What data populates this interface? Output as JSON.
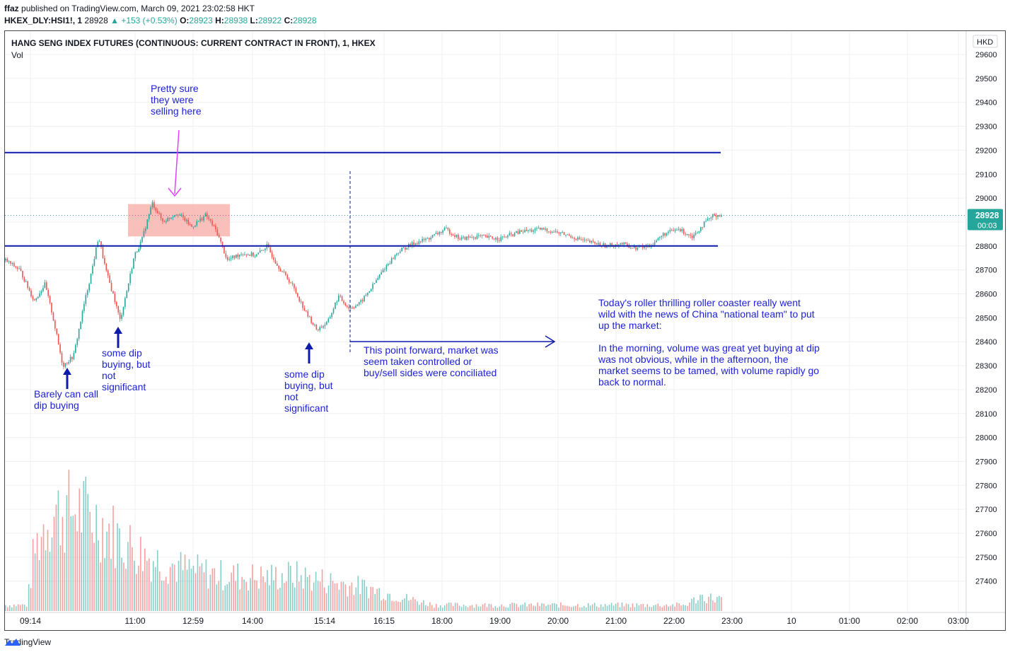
{
  "header": {
    "author": "ffaz",
    "published_text": "published on TradingView.com, March 09, 2021 23:02:58 HKT"
  },
  "quote": {
    "symbol": "HKEX_DLY:HSI1!, 1",
    "last": "28928",
    "change": "▲ +153 (+0.53%)",
    "o_label": "O:",
    "o": "28923",
    "h_label": "H:",
    "h": "28938",
    "l_label": "L:",
    "l": "28922",
    "c_label": "C:",
    "c": "28928"
  },
  "chart_data": {
    "type": "line",
    "title": "HANG SENG INDEX FUTURES (CONTINUOUS: CURRENT CONTRACT IN FRONT), 1, HKEX",
    "volume_label": "Vol",
    "currency": "HKD",
    "last_price_label": "28928",
    "countdown_label": "00:03",
    "ylim": [
      27300,
      29650
    ],
    "y_ticks": [
      29600,
      29500,
      29400,
      29300,
      29200,
      29100,
      29000,
      28900,
      28800,
      28700,
      28600,
      28500,
      28400,
      28300,
      28200,
      28100,
      28000,
      27900,
      27800,
      27700,
      27600,
      27500,
      27400
    ],
    "x_ticks": [
      "09:14",
      "11:00",
      "12:59",
      "14:00",
      "15:14",
      "16:15",
      "18:00",
      "19:00",
      "20:00",
      "21:00",
      "22:00",
      "23:00",
      "10",
      "01:00",
      "02:00",
      "03:00"
    ],
    "horizontal_levels": [
      29190,
      28800
    ],
    "price_series": [
      {
        "t": 0,
        "v": 28740
      },
      {
        "t": 0.02,
        "v": 28700
      },
      {
        "t": 0.04,
        "v": 28570
      },
      {
        "t": 0.055,
        "v": 28640
      },
      {
        "t": 0.065,
        "v": 28520
      },
      {
        "t": 0.08,
        "v": 28300
      },
      {
        "t": 0.095,
        "v": 28340
      },
      {
        "t": 0.11,
        "v": 28560
      },
      {
        "t": 0.12,
        "v": 28690
      },
      {
        "t": 0.13,
        "v": 28840
      },
      {
        "t": 0.14,
        "v": 28700
      },
      {
        "t": 0.152,
        "v": 28580
      },
      {
        "t": 0.16,
        "v": 28490
      },
      {
        "t": 0.17,
        "v": 28620
      },
      {
        "t": 0.18,
        "v": 28760
      },
      {
        "t": 0.19,
        "v": 28820
      },
      {
        "t": 0.205,
        "v": 28980
      },
      {
        "t": 0.22,
        "v": 28900
      },
      {
        "t": 0.24,
        "v": 28940
      },
      {
        "t": 0.26,
        "v": 28880
      },
      {
        "t": 0.28,
        "v": 28930
      },
      {
        "t": 0.295,
        "v": 28860
      },
      {
        "t": 0.31,
        "v": 28740
      },
      {
        "t": 0.33,
        "v": 28770
      },
      {
        "t": 0.35,
        "v": 28760
      },
      {
        "t": 0.365,
        "v": 28800
      },
      {
        "t": 0.38,
        "v": 28720
      },
      {
        "t": 0.4,
        "v": 28640
      },
      {
        "t": 0.42,
        "v": 28520
      },
      {
        "t": 0.435,
        "v": 28450
      },
      {
        "t": 0.45,
        "v": 28480
      },
      {
        "t": 0.465,
        "v": 28590
      },
      {
        "t": 0.48,
        "v": 28540
      },
      {
        "t": 0.495,
        "v": 28560
      },
      {
        "t": 0.51,
        "v": 28620
      },
      {
        "t": 0.53,
        "v": 28710
      },
      {
        "t": 0.55,
        "v": 28780
      },
      {
        "t": 0.57,
        "v": 28810
      },
      {
        "t": 0.59,
        "v": 28830
      },
      {
        "t": 0.615,
        "v": 28870
      },
      {
        "t": 0.635,
        "v": 28830
      },
      {
        "t": 0.66,
        "v": 28840
      },
      {
        "t": 0.69,
        "v": 28830
      },
      {
        "t": 0.72,
        "v": 28860
      },
      {
        "t": 0.75,
        "v": 28870
      },
      {
        "t": 0.78,
        "v": 28850
      },
      {
        "t": 0.81,
        "v": 28820
      },
      {
        "t": 0.84,
        "v": 28800
      },
      {
        "t": 0.86,
        "v": 28810
      },
      {
        "t": 0.88,
        "v": 28790
      },
      {
        "t": 0.9,
        "v": 28800
      },
      {
        "t": 0.92,
        "v": 28850
      },
      {
        "t": 0.94,
        "v": 28870
      },
      {
        "t": 0.96,
        "v": 28840
      },
      {
        "t": 0.975,
        "v": 28890
      },
      {
        "t": 0.99,
        "v": 28930
      },
      {
        "t": 1,
        "v": 28928
      }
    ],
    "volume_profile": [
      {
        "t": 0,
        "v": 0.05
      },
      {
        "t": 0.03,
        "v": 0.05
      },
      {
        "t": 0.04,
        "v": 0.5
      },
      {
        "t": 0.06,
        "v": 0.8
      },
      {
        "t": 0.1,
        "v": 0.85
      },
      {
        "t": 0.13,
        "v": 0.75
      },
      {
        "t": 0.16,
        "v": 0.6
      },
      {
        "t": 0.2,
        "v": 0.45
      },
      {
        "t": 0.25,
        "v": 0.35
      },
      {
        "t": 0.3,
        "v": 0.3
      },
      {
        "t": 0.36,
        "v": 0.28
      },
      {
        "t": 0.4,
        "v": 0.3
      },
      {
        "t": 0.45,
        "v": 0.25
      },
      {
        "t": 0.5,
        "v": 0.2
      },
      {
        "t": 0.55,
        "v": 0.12
      },
      {
        "t": 0.6,
        "v": 0.05
      },
      {
        "t": 0.95,
        "v": 0.05
      },
      {
        "t": 0.97,
        "v": 0.12
      },
      {
        "t": 1,
        "v": 0.1
      }
    ]
  },
  "annotations": {
    "selling_note": [
      "Pretty sure",
      "they were",
      "selling here"
    ],
    "barely_note": [
      "Barely can call",
      "dip buying"
    ],
    "dip1_note": [
      "some dip",
      "buying, but",
      "not",
      "significant"
    ],
    "dip2_note": [
      "some dip",
      "buying, but",
      "not",
      "significant"
    ],
    "forward_note": [
      "This point forward, market was",
      "seem taken controlled or",
      "buy/sell sides were conciliated"
    ],
    "summary_note": [
      "Today's roller thrilling roller coaster really went",
      "wild with the news of China \"national team\" to put",
      "up the market:",
      "",
      "In the morning, volume was great yet buying at dip",
      "was not obvious, while in the afternoon, the",
      "market seems to be tamed, with volume rapidly go",
      "back to normal."
    ]
  },
  "colors": {
    "up": "#26a69a",
    "down": "#ef5350",
    "level_line": "#0d1bab",
    "annotation_text": "#1e22d6",
    "selling_arrow": "#e040fb",
    "highlight_box": "#f8b4ae",
    "grid": "#eef0f4"
  },
  "footer": {
    "brand": "TradingView"
  }
}
